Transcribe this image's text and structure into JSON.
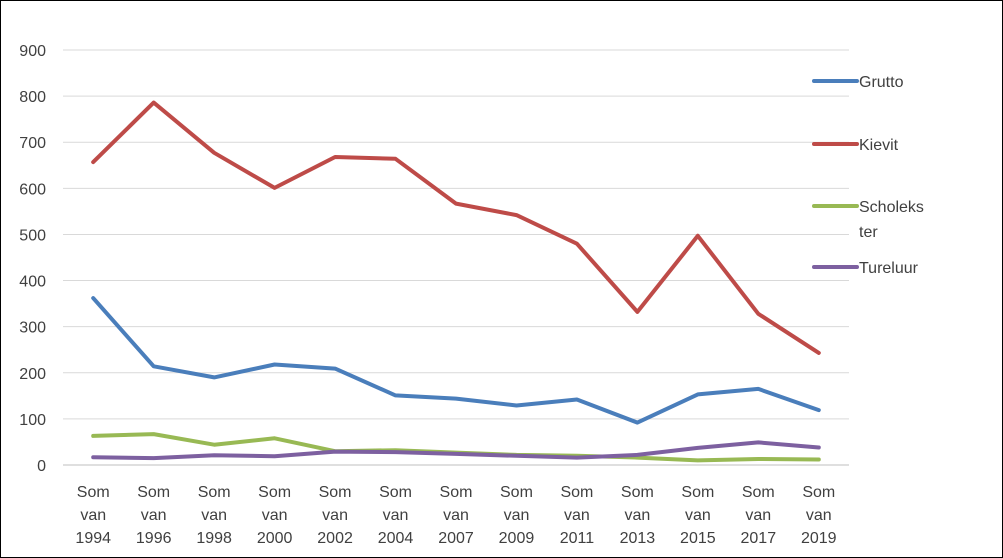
{
  "chart_data": {
    "type": "line",
    "title": "",
    "xlabel": "",
    "ylabel": "",
    "categories": [
      [
        "Som",
        "van",
        "1994"
      ],
      [
        "Som",
        "van",
        "1996"
      ],
      [
        "Som",
        "van",
        "1998"
      ],
      [
        "Som",
        "van",
        "2000"
      ],
      [
        "Som",
        "van",
        "2002"
      ],
      [
        "Som",
        "van",
        "2004"
      ],
      [
        "Som",
        "van",
        "2007"
      ],
      [
        "Som",
        "van",
        "2009"
      ],
      [
        "Som",
        "van",
        "2011"
      ],
      [
        "Som",
        "van",
        "2013"
      ],
      [
        "Som",
        "van",
        "2015"
      ],
      [
        "Som",
        "van",
        "2017"
      ],
      [
        "Som",
        "van",
        "2019"
      ]
    ],
    "ylim": [
      0,
      900
    ],
    "yticks": [
      0,
      100,
      200,
      300,
      400,
      500,
      600,
      700,
      800,
      900
    ],
    "grid": true,
    "legend_position": "right",
    "series": [
      {
        "name": "Grutto",
        "legend_lines": [
          "Grutto"
        ],
        "color": "#4a7ebb",
        "values": [
          362,
          214,
          190,
          218,
          209,
          151,
          144,
          129,
          142,
          92,
          153,
          165,
          119
        ]
      },
      {
        "name": "Kievit",
        "legend_lines": [
          "Kievit"
        ],
        "color": "#be4b48",
        "values": [
          657,
          786,
          677,
          601,
          668,
          664,
          567,
          542,
          480,
          332,
          497,
          328,
          243
        ]
      },
      {
        "name": "Scholekster",
        "legend_lines": [
          "Scholeks",
          "ter"
        ],
        "color": "#98b954",
        "values": [
          63,
          67,
          44,
          58,
          30,
          32,
          27,
          22,
          20,
          16,
          10,
          13,
          12
        ]
      },
      {
        "name": "Tureluur",
        "legend_lines": [
          "Tureluur"
        ],
        "color": "#7d60a0",
        "values": [
          17,
          15,
          21,
          19,
          29,
          28,
          24,
          20,
          16,
          22,
          37,
          49,
          38
        ]
      }
    ]
  }
}
